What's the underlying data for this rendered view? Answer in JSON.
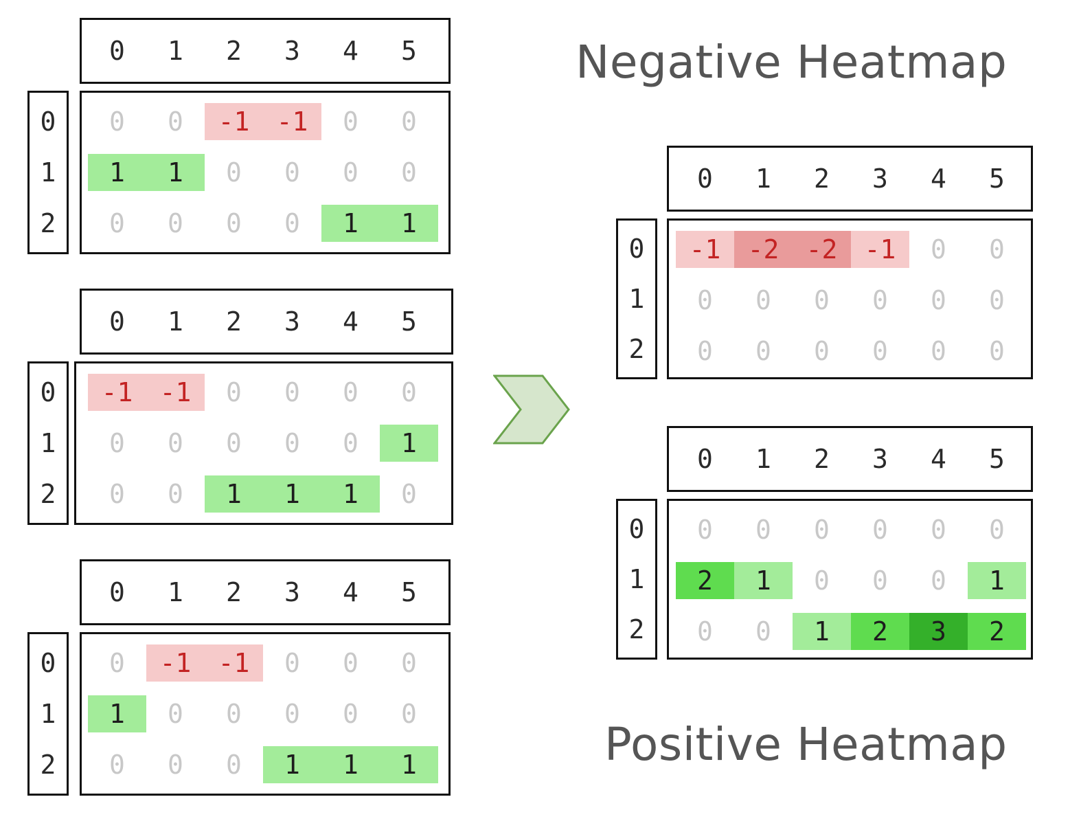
{
  "columns": [
    "0",
    "1",
    "2",
    "3",
    "4",
    "5"
  ],
  "rows": [
    "0",
    "1",
    "2"
  ],
  "colors": {
    "neg1": "#f6caca",
    "neg2": "#e99b9b",
    "pos1": "#a3ec9a",
    "pos2": "#5fdc4f",
    "pos3": "#34b02a",
    "zero_text": "#c8c8c8",
    "value_text": "#1d1d1d",
    "neg_text": "#c32323",
    "arrow_fill": "#d6e6cc",
    "arrow_stroke": "#6aa34c",
    "title_text": "#555555"
  },
  "titles": {
    "negative": "Negative Heatmap",
    "positive": "Positive Heatmap"
  },
  "icons": {
    "arrow": "chevron-right-icon"
  },
  "input_grids": [
    {
      "values": [
        [
          0,
          0,
          -1,
          -1,
          0,
          0
        ],
        [
          1,
          1,
          0,
          0,
          0,
          0
        ],
        [
          0,
          0,
          0,
          0,
          1,
          1
        ]
      ]
    },
    {
      "values": [
        [
          -1,
          -1,
          0,
          0,
          0,
          0
        ],
        [
          0,
          0,
          0,
          0,
          0,
          1
        ],
        [
          0,
          0,
          1,
          1,
          1,
          0
        ]
      ]
    },
    {
      "values": [
        [
          0,
          -1,
          -1,
          0,
          0,
          0
        ],
        [
          1,
          0,
          0,
          0,
          0,
          0
        ],
        [
          0,
          0,
          0,
          1,
          1,
          1
        ]
      ]
    }
  ],
  "negative_heatmap": {
    "values": [
      [
        -1,
        -2,
        -2,
        -1,
        0,
        0
      ],
      [
        0,
        0,
        0,
        0,
        0,
        0
      ],
      [
        0,
        0,
        0,
        0,
        0,
        0
      ]
    ]
  },
  "positive_heatmap": {
    "values": [
      [
        0,
        0,
        0,
        0,
        0,
        0
      ],
      [
        2,
        1,
        0,
        0,
        0,
        1
      ],
      [
        0,
        0,
        1,
        2,
        3,
        2
      ]
    ]
  }
}
